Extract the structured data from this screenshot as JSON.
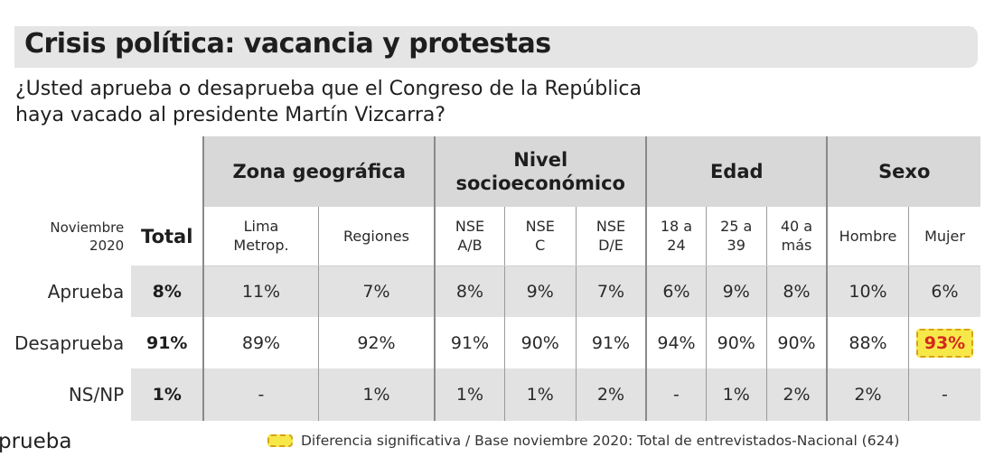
{
  "title": "Crisis política: vacancia y protestas",
  "question": {
    "line1": "¿Usted aprueba o desaprueba que el Congreso de la República",
    "line2": "haya vacado al presidente Martín Vizcarra?"
  },
  "header": {
    "date_line1": "Noviembre",
    "date_line2": "2020",
    "total": "Total",
    "groups": {
      "zona": "Zona geográfica",
      "nse_line1": "Nivel",
      "nse_line2": "socioeconómico",
      "edad": "Edad",
      "sexo": "Sexo"
    },
    "columns": {
      "lima": [
        "Lima",
        "Metrop."
      ],
      "regiones": [
        "Regiones"
      ],
      "nse_ab": [
        "NSE",
        "A/B"
      ],
      "nse_c": [
        "NSE",
        "C"
      ],
      "nse_de": [
        "NSE",
        "D/E"
      ],
      "e18": [
        "18 a",
        "24"
      ],
      "e25": [
        "25 a",
        "39"
      ],
      "e40": [
        "40 a",
        "más"
      ],
      "hombre": [
        "Hombre"
      ],
      "mujer": [
        "Mujer"
      ]
    }
  },
  "rows": [
    {
      "label": "Aprueba",
      "total": "8%",
      "values": [
        "11%",
        "7%",
        "8%",
        "9%",
        "7%",
        "6%",
        "9%",
        "8%",
        "10%",
        "6%"
      ]
    },
    {
      "label": "Desaprueba",
      "total": "91%",
      "values": [
        "89%",
        "92%",
        "91%",
        "90%",
        "91%",
        "94%",
        "90%",
        "90%",
        "88%",
        "93%"
      ]
    },
    {
      "label": "NS/NP",
      "total": "1%",
      "values": [
        "-",
        "1%",
        "1%",
        "1%",
        "2%",
        "-",
        "1%",
        "2%",
        "2%",
        "-"
      ]
    }
  ],
  "highlight": {
    "row": 1,
    "col": 9,
    "fill_color": "#f7e84a",
    "border_color": "#d7a11a",
    "text_color": "#d4281c"
  },
  "footnote": "Diferencia significativa  / Base noviembre 2020: Total de entrevistados-Nacional (624)",
  "fragment_text": "prueba",
  "colors": {
    "title_bar": "#e5e5e5",
    "group_header": "#d8d8d8",
    "shaded_row": "#e2e2e2"
  }
}
